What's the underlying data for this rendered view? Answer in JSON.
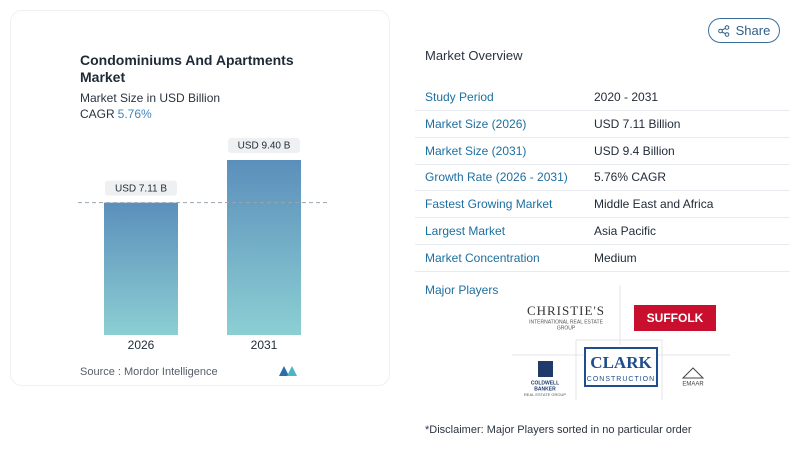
{
  "chart_data": {
    "type": "bar",
    "title": "Condominiums And Apartments Market",
    "subtitle": "Market Size in USD Billion",
    "cagr_label": "CAGR",
    "cagr_value": "5.76%",
    "categories": [
      "2026",
      "2031"
    ],
    "values": [
      7.11,
      9.4
    ],
    "value_labels": [
      "USD 7.11 B",
      "USD 9.40 B"
    ],
    "color": "#5b8fbb",
    "source": "Source :  Mordor Intelligence"
  },
  "share": "Share",
  "overview": {
    "title": "Market Overview",
    "rows": [
      [
        "Study Period",
        "2020 - 2031"
      ],
      [
        "Market Size (2026)",
        "USD 7.11 Billion"
      ],
      [
        "Market Size (2031)",
        "USD 9.4 Billion"
      ],
      [
        "Growth Rate (2026 - 2031)",
        "5.76% CAGR"
      ],
      [
        "Fastest Growing Market",
        "Middle East and Africa"
      ],
      [
        "Largest Market",
        "Asia Pacific"
      ],
      [
        "Market Concentration",
        "Medium"
      ]
    ]
  },
  "players": {
    "title": "Major Players",
    "christies": [
      "CHRISTIE'S",
      "INTERNATIONAL REAL ESTATE",
      "GROUP"
    ],
    "suffolk": "SUFFOLK",
    "clark": [
      "CLARK",
      "CONSTRUCTION"
    ],
    "coldwell": [
      "COLDWELL",
      "BANKER",
      "REAL ESTATE GROUP"
    ],
    "emaar": "EMAAR"
  },
  "disclaimer": "*Disclaimer: Major Players sorted in no particular order"
}
